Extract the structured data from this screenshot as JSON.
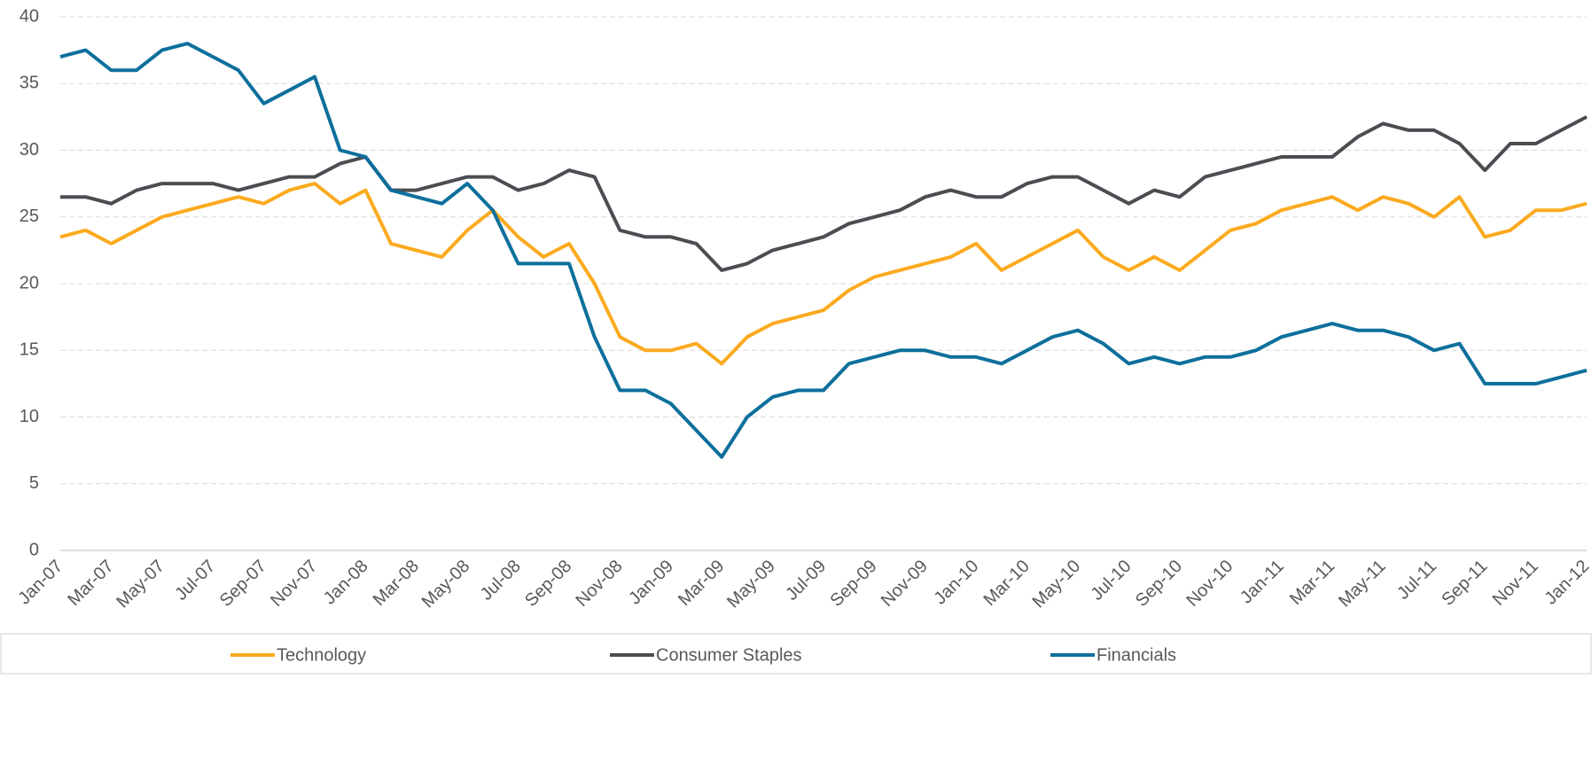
{
  "chart_data": {
    "type": "line",
    "categories": [
      "Jan-07",
      null,
      "Mar-07",
      null,
      "May-07",
      null,
      "Jul-07",
      null,
      "Sep-07",
      null,
      "Nov-07",
      null,
      "Jan-08",
      null,
      "Mar-08",
      null,
      "May-08",
      null,
      "Jul-08",
      null,
      "Sep-08",
      null,
      "Nov-08",
      null,
      "Jan-09",
      null,
      "Mar-09",
      null,
      "May-09",
      null,
      "Jul-09",
      null,
      "Sep-09",
      null,
      "Nov-09",
      null,
      "Jan-10",
      null,
      "Mar-10",
      null,
      "May-10",
      null,
      "Jul-10",
      null,
      "Sep-10",
      null,
      "Nov-10",
      null,
      "Jan-11",
      null,
      "Mar-11",
      null,
      "May-11",
      null,
      "Jul-11",
      null,
      "Sep-11",
      null,
      "Nov-11",
      null,
      "Jan-12"
    ],
    "series": [
      {
        "name": "Technology",
        "color": "#fbaa1f",
        "values": [
          23.5,
          24,
          23,
          24,
          25,
          25.5,
          26,
          26.5,
          26,
          27,
          27.5,
          26,
          27,
          23,
          22.5,
          22,
          24,
          25.5,
          23.5,
          22,
          23,
          20,
          16,
          15,
          15,
          15.5,
          14,
          16,
          17,
          17.5,
          18,
          19.5,
          20.5,
          21,
          21.5,
          22,
          23,
          21,
          22,
          23,
          24,
          22,
          21,
          22,
          21,
          22.5,
          24,
          24.5,
          25.5,
          26,
          26.5,
          25.5,
          26.5,
          26,
          25,
          26.5,
          23.5,
          24,
          25.5,
          25.5,
          26
        ]
      },
      {
        "name": "Consumer Staples",
        "color": "#4a4d51",
        "values": [
          26.5,
          26.5,
          26,
          27,
          27.5,
          27.5,
          27.5,
          27,
          27.5,
          28,
          28,
          29,
          29.5,
          27,
          27,
          27.5,
          28,
          28,
          27,
          27.5,
          28.5,
          28,
          24,
          23.5,
          23.5,
          23,
          21,
          21.5,
          22.5,
          23,
          23.5,
          24.5,
          25,
          25.5,
          26.5,
          27,
          26.5,
          26.5,
          27.5,
          28,
          28,
          27,
          26,
          27,
          26.5,
          28,
          28.5,
          29,
          29.5,
          29.5,
          29.5,
          31,
          32,
          31.5,
          31.5,
          30.5,
          28.5,
          30.5,
          30.5,
          31.5,
          32.5
        ]
      },
      {
        "name": "Financials",
        "color": "#0d6f9c",
        "values": [
          37,
          37.5,
          36,
          36,
          37.5,
          38,
          37,
          36,
          33.5,
          34.5,
          35.5,
          30,
          29.5,
          27,
          26.5,
          26,
          27.5,
          25.5,
          21.5,
          21.5,
          21.5,
          16,
          12,
          12,
          11,
          9,
          7,
          10,
          11.5,
          12,
          12,
          14,
          14.5,
          15,
          15,
          14.5,
          14.5,
          14,
          15,
          16,
          16.5,
          15.5,
          14,
          14.5,
          14,
          14.5,
          14.5,
          15,
          16,
          16.5,
          17,
          16.5,
          16.5,
          16,
          15,
          15.5,
          12.5,
          12.5,
          12.5,
          13,
          13.5
        ]
      }
    ],
    "ylim": [
      0,
      40
    ],
    "yticks": [
      0,
      5,
      10,
      15,
      20,
      25,
      30,
      35,
      40
    ],
    "grid": true,
    "legend": "bottom"
  }
}
